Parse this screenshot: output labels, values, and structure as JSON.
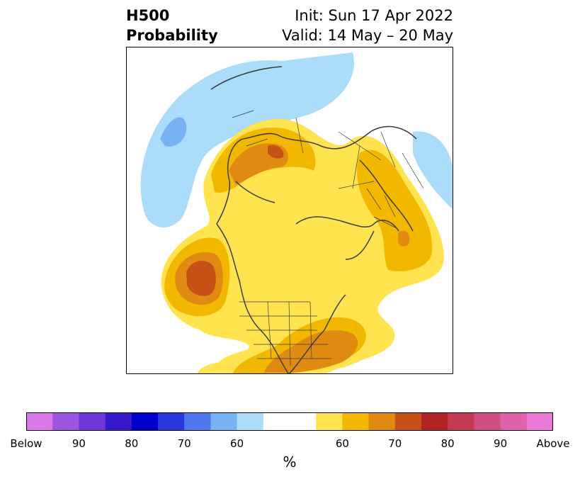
{
  "title": {
    "variable": "H500",
    "product": "Probability",
    "init": "Init: Sun 17 Apr 2022",
    "valid": "Valid: 14 May – 20 May"
  },
  "colorbar": {
    "unit": "%",
    "colors": [
      "#d978e8",
      "#9c56e0",
      "#6f37d8",
      "#3a18cc",
      "#0000cc",
      "#2a38e0",
      "#4f78ee",
      "#79b1f5",
      "#abdcfa",
      "#ffffff",
      "#ffffff",
      "#ffe34f",
      "#f2b800",
      "#e08a12",
      "#c75217",
      "#b42424",
      "#c33a52",
      "#d24f84",
      "#dd62aa",
      "#ea7ad8"
    ],
    "tick_labels": [
      "Below",
      "90",
      "80",
      "70",
      "60",
      "60",
      "70",
      "80",
      "90",
      "Above"
    ]
  }
}
